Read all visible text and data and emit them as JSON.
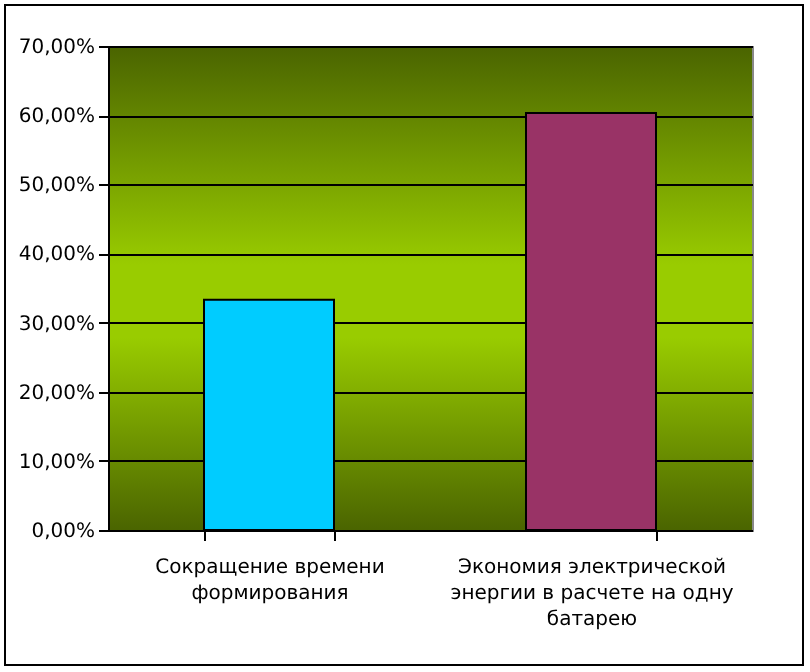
{
  "chart_data": {
    "type": "bar",
    "categories": [
      "Сокращение времени формирования",
      "Экономия электрической энергии в расчете на одну батарею"
    ],
    "values": [
      33.3,
      60.3
    ],
    "colors": [
      "#00ccff",
      "#993366"
    ],
    "ylim": [
      0,
      70
    ],
    "yticks": [
      {
        "value": 0,
        "label": "0,00%"
      },
      {
        "value": 10,
        "label": "10,00%"
      },
      {
        "value": 20,
        "label": "20,00%"
      },
      {
        "value": 30,
        "label": "30,00%"
      },
      {
        "value": 40,
        "label": "40,00%"
      },
      {
        "value": 50,
        "label": "50,00%"
      },
      {
        "value": 60,
        "label": "60,00%"
      },
      {
        "value": 70,
        "label": "70,00%"
      }
    ],
    "grid": "y"
  }
}
